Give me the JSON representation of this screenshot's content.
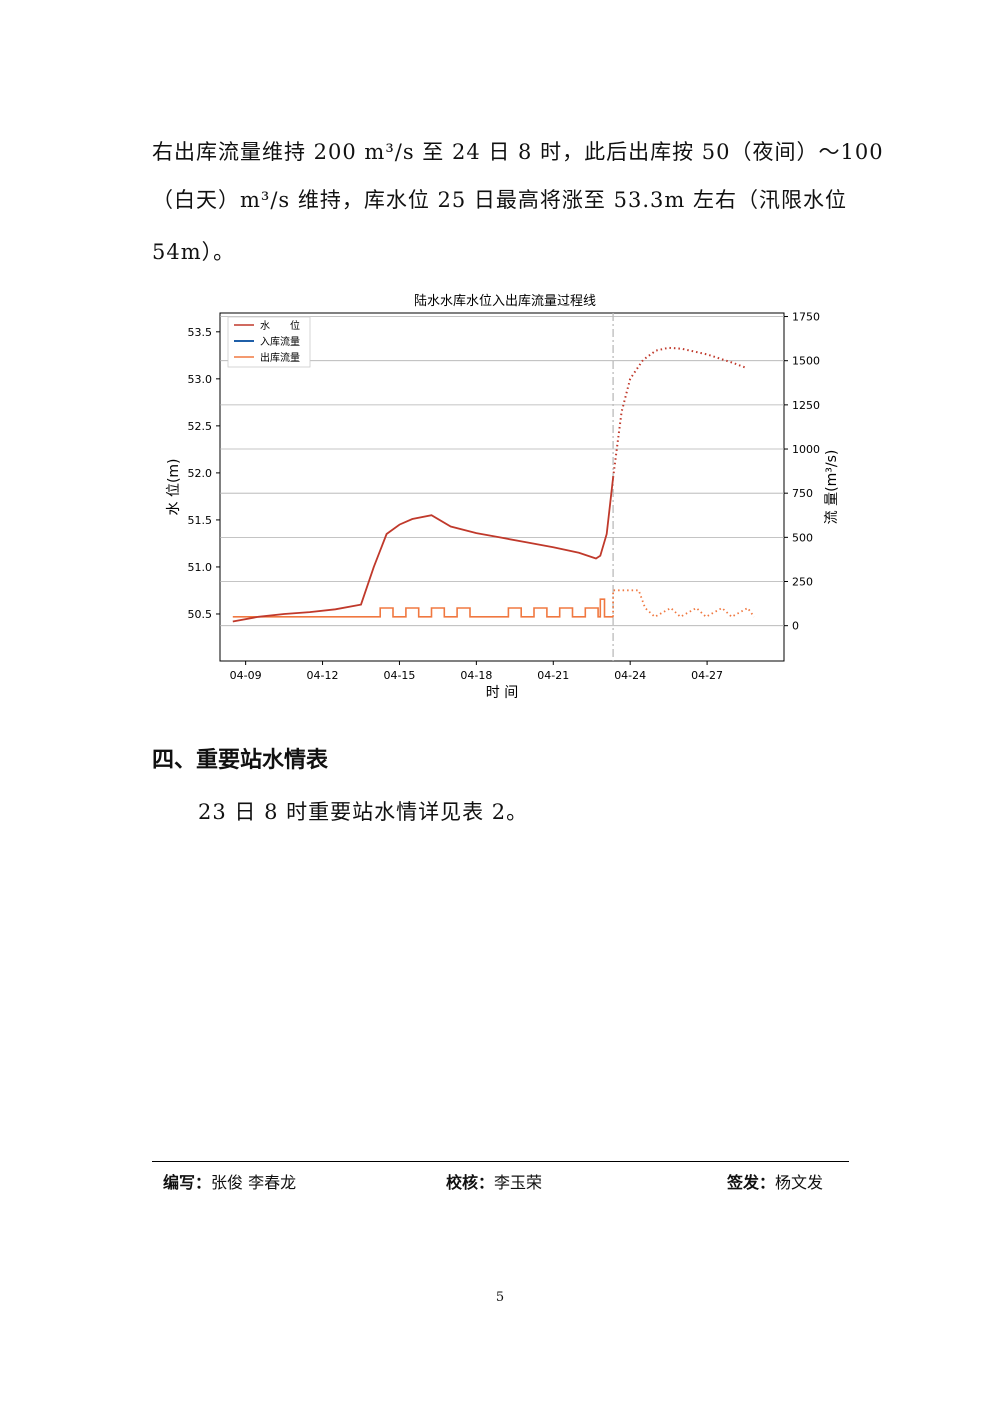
{
  "paragraph": {
    "line1": "右出库流量维持 200 m³/s 至 24 日 8 时，此后出库按 50（夜间）～100",
    "line2": "（白天）m³/s 维持，库水位 25 日最高将涨至 53.3m 左右（汛限水位",
    "line3": "54m）。"
  },
  "chart_data": {
    "type": "line",
    "title": "陆水水库水位入出库流量过程线",
    "xlabel": "时 间",
    "ylabel_left": "水 位(m)",
    "ylabel_right": "流 量(m³/s)",
    "x_ticks": [
      "04-09",
      "04-12",
      "04-15",
      "04-18",
      "04-21",
      "04-24",
      "04-27"
    ],
    "y_left_ticks": [
      "50.5",
      "51.0",
      "51.5",
      "52.0",
      "52.5",
      "53.0",
      "53.5"
    ],
    "y_right_ticks": [
      "0",
      "250",
      "500",
      "750",
      "1000",
      "1250",
      "1500",
      "1750"
    ],
    "ylim_left": [
      50.0,
      53.7
    ],
    "ylim_right": [
      -200,
      1770
    ],
    "forecast_start": "04-23 08:00",
    "legend": [
      "水　　位",
      "入库流量",
      "出库流量"
    ],
    "legend_position": "top-left",
    "grid": "horizontal",
    "colors": {
      "water_level": "#c0392b",
      "inflow": "#1f5fa8",
      "outflow": "#f07840"
    },
    "series": [
      {
        "name": "水　　位",
        "observed": [
          [
            "04-08 12:00",
            50.42
          ],
          [
            "04-09 12:00",
            50.47
          ],
          [
            "04-10 12:00",
            50.5
          ],
          [
            "04-11 12:00",
            50.52
          ],
          [
            "04-12 12:00",
            50.55
          ],
          [
            "04-13 12:00",
            50.6
          ],
          [
            "04-14 00:00",
            51.0
          ],
          [
            "04-14 12:00",
            51.35
          ],
          [
            "04-15 00:00",
            51.45
          ],
          [
            "04-15 12:00",
            51.51
          ],
          [
            "04-16 06:00",
            51.55
          ],
          [
            "04-17 00:00",
            51.43
          ],
          [
            "04-18 00:00",
            51.36
          ],
          [
            "04-19 00:00",
            51.31
          ],
          [
            "04-20 00:00",
            51.26
          ],
          [
            "04-21 00:00",
            51.21
          ],
          [
            "04-22 00:00",
            51.15
          ],
          [
            "04-22 16:00",
            51.09
          ],
          [
            "04-22 20:00",
            51.12
          ],
          [
            "04-23 02:00",
            51.35
          ],
          [
            "04-23 08:00",
            51.95
          ]
        ],
        "forecast": [
          [
            "04-23 08:00",
            51.95
          ],
          [
            "04-23 16:00",
            52.65
          ],
          [
            "04-24 00:00",
            53.0
          ],
          [
            "04-24 12:00",
            53.2
          ],
          [
            "04-25 00:00",
            53.3
          ],
          [
            "04-25 12:00",
            53.33
          ],
          [
            "04-26 00:00",
            53.32
          ],
          [
            "04-27 00:00",
            53.26
          ],
          [
            "04-28 00:00",
            53.17
          ],
          [
            "04-28 12:00",
            53.12
          ]
        ]
      },
      {
        "name": "出库流量",
        "observed": [
          [
            "04-08 12:00",
            50
          ],
          [
            "04-14 06:00",
            50
          ],
          [
            "04-14 06:00",
            100
          ],
          [
            "04-14 18:00",
            100
          ],
          [
            "04-14 18:00",
            50
          ],
          [
            "04-15 06:00",
            50
          ],
          [
            "04-15 06:00",
            100
          ],
          [
            "04-15 18:00",
            100
          ],
          [
            "04-15 18:00",
            50
          ],
          [
            "04-16 06:00",
            50
          ],
          [
            "04-16 06:00",
            100
          ],
          [
            "04-16 18:00",
            100
          ],
          [
            "04-16 18:00",
            50
          ],
          [
            "04-17 06:00",
            50
          ],
          [
            "04-17 06:00",
            100
          ],
          [
            "04-17 18:00",
            100
          ],
          [
            "04-17 18:00",
            50
          ],
          [
            "04-19 06:00",
            50
          ],
          [
            "04-19 06:00",
            100
          ],
          [
            "04-19 18:00",
            100
          ],
          [
            "04-19 18:00",
            50
          ],
          [
            "04-20 06:00",
            50
          ],
          [
            "04-20 06:00",
            100
          ],
          [
            "04-20 18:00",
            100
          ],
          [
            "04-20 18:00",
            50
          ],
          [
            "04-21 06:00",
            50
          ],
          [
            "04-21 06:00",
            100
          ],
          [
            "04-21 18:00",
            100
          ],
          [
            "04-21 18:00",
            50
          ],
          [
            "04-22 06:00",
            50
          ],
          [
            "04-22 06:00",
            100
          ],
          [
            "04-22 18:00",
            100
          ],
          [
            "04-22 18:00",
            50
          ],
          [
            "04-22 20:00",
            50
          ],
          [
            "04-22 20:00",
            150
          ],
          [
            "04-23 00:00",
            150
          ],
          [
            "04-23 00:00",
            50
          ],
          [
            "04-23 08:00",
            50
          ]
        ],
        "forecast": [
          [
            "04-23 08:00",
            50
          ],
          [
            "04-23 08:00",
            200
          ],
          [
            "04-24 08:00",
            200
          ],
          [
            "04-24 14:00",
            100
          ],
          [
            "04-24 23:00",
            50
          ],
          [
            "04-25 14:00",
            100
          ],
          [
            "04-25 23:00",
            50
          ],
          [
            "04-26 14:00",
            100
          ],
          [
            "04-26 23:00",
            50
          ],
          [
            "04-27 14:00",
            100
          ],
          [
            "04-27 23:00",
            50
          ],
          [
            "04-28 14:00",
            100
          ],
          [
            "04-28 20:00",
            50
          ]
        ]
      }
    ]
  },
  "section": {
    "heading": "四、重要站水情表",
    "text": "23 日 8 时重要站水情详见表 2。"
  },
  "footer": {
    "author_label": "编写：",
    "author": "张俊 李春龙",
    "checker_label": "校核：",
    "checker": "李玉荣",
    "approver_label": "签发：",
    "approver": "杨文发"
  },
  "page_number": "5"
}
